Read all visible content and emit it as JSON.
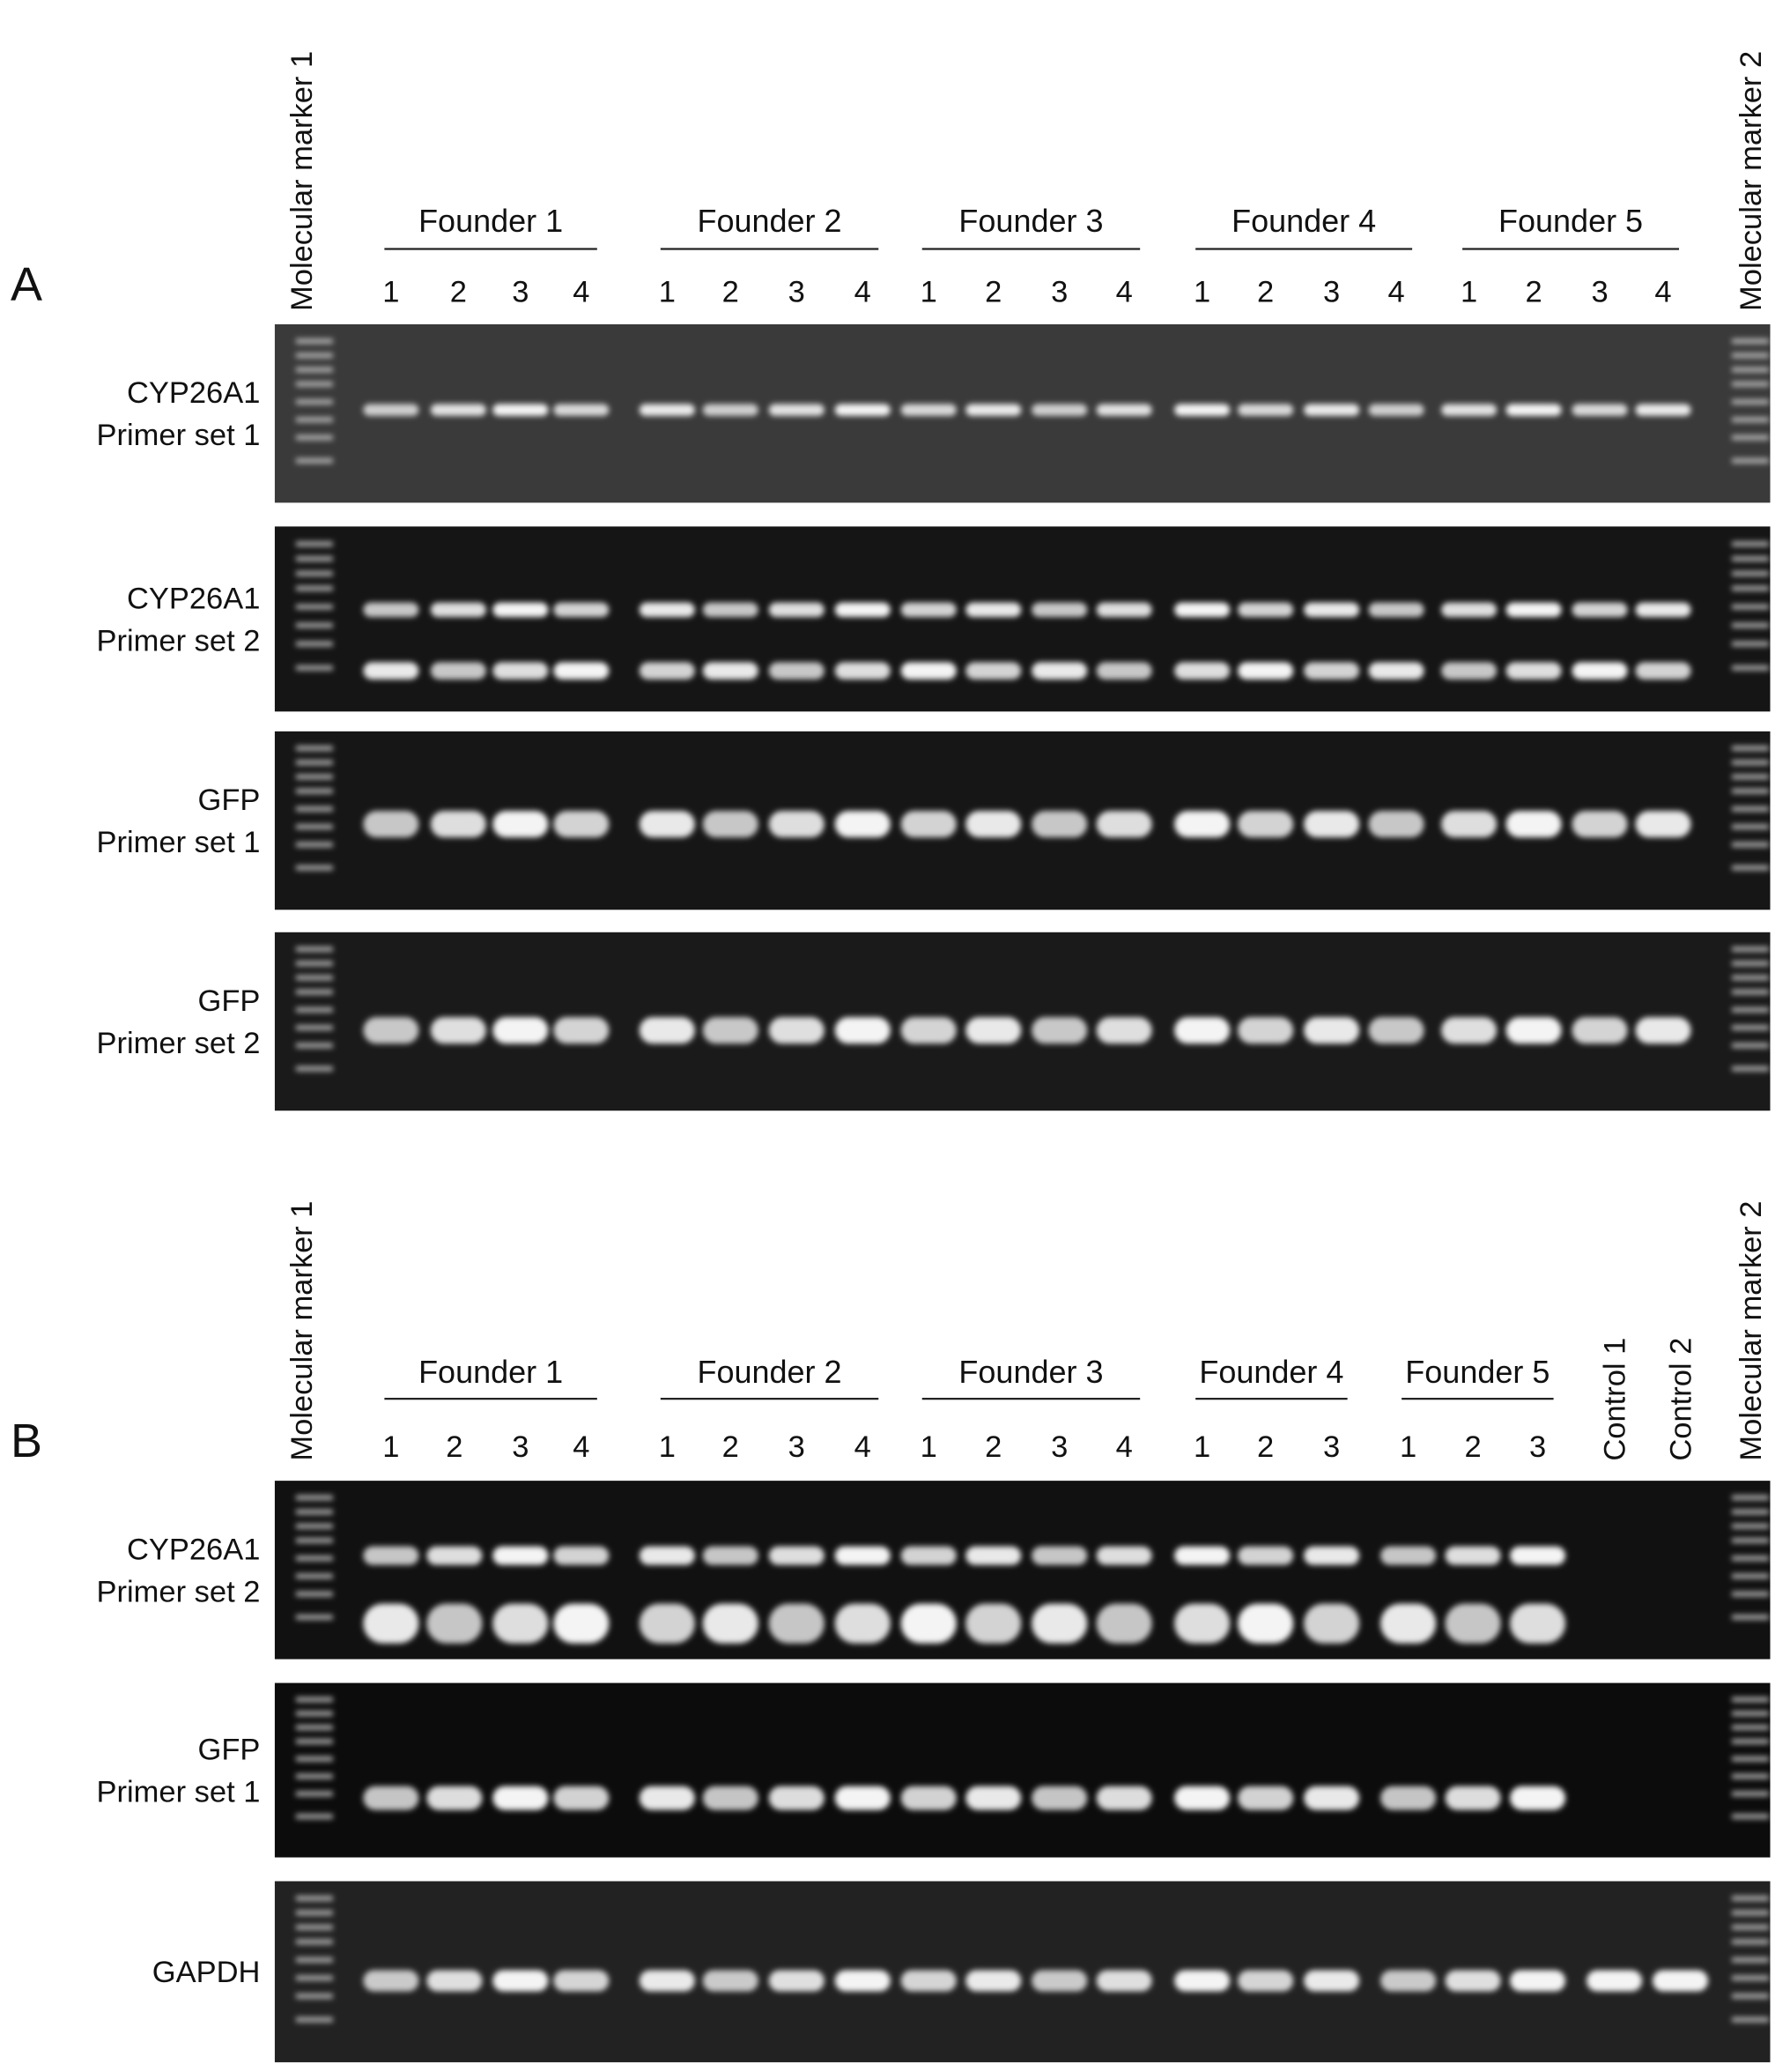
{
  "panels": [
    {
      "label": "A",
      "marker_left": "Molecular marker 1",
      "marker_right": "Molecular marker 2",
      "founders": [
        {
          "name": "Founder 1",
          "lanes": [
            "1",
            "2",
            "3",
            "4"
          ]
        },
        {
          "name": "Founder 2",
          "lanes": [
            "1",
            "2",
            "3",
            "4"
          ]
        },
        {
          "name": "Founder 3",
          "lanes": [
            "1",
            "2",
            "3",
            "4"
          ]
        },
        {
          "name": "Founder 4",
          "lanes": [
            "1",
            "2",
            "3",
            "4"
          ]
        },
        {
          "name": "Founder 5",
          "lanes": [
            "1",
            "2",
            "3",
            "4"
          ]
        }
      ],
      "controls": [],
      "gels": [
        {
          "label_lines": [
            "CYP26A1",
            "Primer set 1"
          ]
        },
        {
          "label_lines": [
            "CYP26A1",
            "Primer set 2"
          ]
        },
        {
          "label_lines": [
            "GFP",
            "Primer set 1"
          ]
        },
        {
          "label_lines": [
            "GFP",
            "Primer set 2"
          ]
        }
      ]
    },
    {
      "label": "B",
      "marker_left": "Molecular marker 1",
      "marker_right": "Molecular marker 2",
      "founders": [
        {
          "name": "Founder 1",
          "lanes": [
            "1",
            "2",
            "3",
            "4"
          ]
        },
        {
          "name": "Founder 2",
          "lanes": [
            "1",
            "2",
            "3",
            "4"
          ]
        },
        {
          "name": "Founder 3",
          "lanes": [
            "1",
            "2",
            "3",
            "4"
          ]
        },
        {
          "name": "Founder 4",
          "lanes": [
            "1",
            "2",
            "3"
          ]
        },
        {
          "name": "Founder 5",
          "lanes": [
            "1",
            "2",
            "3"
          ]
        }
      ],
      "controls": [
        "Control 1",
        "Control 2"
      ],
      "gels": [
        {
          "label_lines": [
            "CYP26A1",
            "Primer set 2"
          ]
        },
        {
          "label_lines": [
            "GFP",
            "Primer set 1"
          ]
        },
        {
          "label_lines": [
            "GAPDH"
          ]
        }
      ]
    }
  ]
}
